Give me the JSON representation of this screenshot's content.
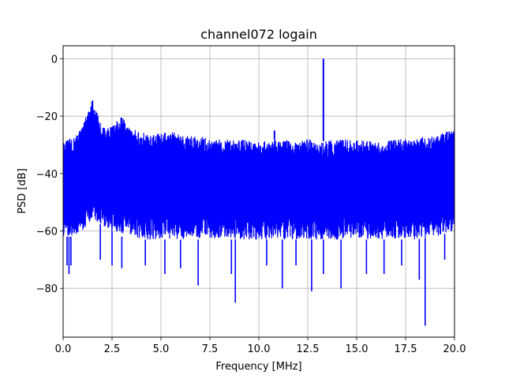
{
  "chart_data": {
    "type": "line",
    "title": "channel072 logain",
    "xlabel": "Frequency [MHz]",
    "ylabel": "PSD [dB]",
    "xlim": [
      0,
      20
    ],
    "ylim": [
      -97,
      4.5
    ],
    "x_ticks": [
      0,
      2.5,
      5,
      7.5,
      10,
      12.5,
      15,
      17.5,
      20
    ],
    "x_tick_labels": [
      "0.0",
      "2.5",
      "5.0",
      "7.5",
      "10.0",
      "12.5",
      "15.0",
      "17.5",
      "20.0"
    ],
    "y_ticks": [
      0,
      -20,
      -40,
      -60,
      -80
    ],
    "y_tick_labels": [
      "0",
      "−20",
      "−40",
      "−60",
      "−80"
    ],
    "grid": true,
    "series": [
      {
        "color": "#0000ff",
        "upper_envelope": {
          "x": [
            0.0,
            0.3,
            0.6,
            0.9,
            1.1,
            1.3,
            1.5,
            1.7,
            2.0,
            2.4,
            2.8,
            3.0,
            3.3,
            3.8,
            4.5,
            5.0,
            5.5,
            6.0,
            6.5,
            7.0,
            7.5,
            8.0,
            9.0,
            10.0,
            11.0,
            12.0,
            12.5,
            13.0,
            14.0,
            15.0,
            16.0,
            17.0,
            17.5,
            18.0,
            18.5,
            19.0,
            19.5,
            20.0
          ],
          "y": [
            -29,
            -28,
            -27,
            -24,
            -21,
            -18,
            -14,
            -18,
            -24,
            -24,
            -21,
            -20,
            -23,
            -25,
            -26,
            -26,
            -25,
            -26,
            -27,
            -27,
            -28,
            -28,
            -28,
            -29,
            -28,
            -29,
            -28,
            -29,
            -28,
            -28,
            -29,
            -28,
            -28,
            -28,
            -27,
            -27,
            -25,
            -25
          ]
        },
        "lower_envelope": {
          "x": [
            0.0,
            0.5,
            1.0,
            1.5,
            2.0,
            2.5,
            3.0,
            4.0,
            5.0,
            6.0,
            7.0,
            8.0,
            9.0,
            10.0,
            11.0,
            12.0,
            13.0,
            14.0,
            15.0,
            16.0,
            17.0,
            18.0,
            19.0,
            20.0
          ],
          "y": [
            -62,
            -62,
            -60,
            -56,
            -58,
            -60,
            -62,
            -63,
            -63,
            -63,
            -63,
            -63,
            -63,
            -63,
            -63,
            -63,
            -63,
            -63,
            -63,
            -63,
            -63,
            -63,
            -62,
            -60
          ]
        },
        "spikes": [
          {
            "x": 13.3,
            "y": 0
          },
          {
            "x": 10.8,
            "y": -25
          }
        ],
        "dips": [
          {
            "x": 0.2,
            "y": -72
          },
          {
            "x": 0.3,
            "y": -75
          },
          {
            "x": 0.4,
            "y": -72
          },
          {
            "x": 1.9,
            "y": -70
          },
          {
            "x": 2.5,
            "y": -72
          },
          {
            "x": 3.0,
            "y": -73
          },
          {
            "x": 4.2,
            "y": -72
          },
          {
            "x": 5.2,
            "y": -75
          },
          {
            "x": 6.0,
            "y": -73
          },
          {
            "x": 6.9,
            "y": -79
          },
          {
            "x": 8.6,
            "y": -75
          },
          {
            "x": 8.8,
            "y": -85
          },
          {
            "x": 10.4,
            "y": -72
          },
          {
            "x": 11.2,
            "y": -80
          },
          {
            "x": 11.9,
            "y": -72
          },
          {
            "x": 12.7,
            "y": -81
          },
          {
            "x": 13.3,
            "y": -75
          },
          {
            "x": 14.2,
            "y": -80
          },
          {
            "x": 15.5,
            "y": -75
          },
          {
            "x": 16.4,
            "y": -75
          },
          {
            "x": 17.3,
            "y": -72
          },
          {
            "x": 18.2,
            "y": -77
          },
          {
            "x": 18.5,
            "y": -93
          },
          {
            "x": 19.5,
            "y": -70
          }
        ]
      }
    ]
  }
}
